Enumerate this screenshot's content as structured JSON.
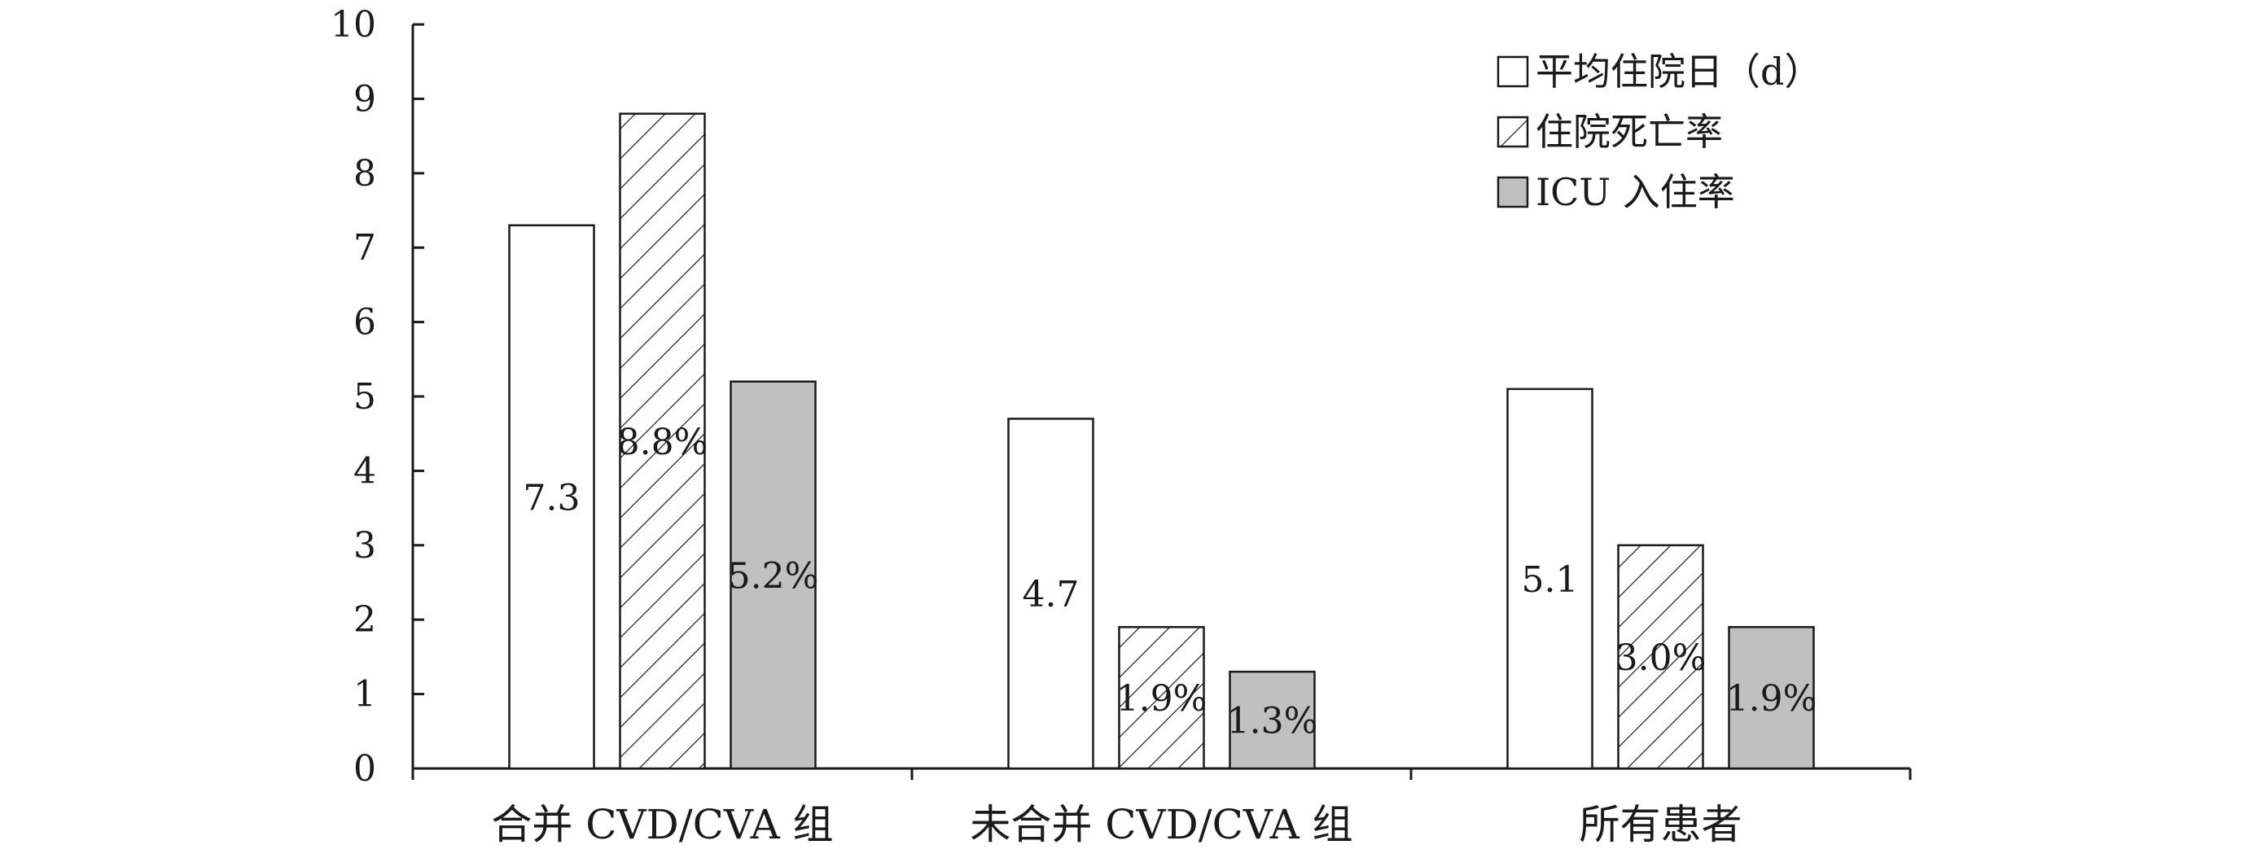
{
  "chart_data": {
    "type": "bar",
    "categories": [
      "合并 CVD/CVA 组",
      "未合并 CVD/CVA 组",
      "所有患者"
    ],
    "series": [
      {
        "name": "平均住院日（d）",
        "values": [
          7.3,
          4.7,
          5.1
        ],
        "labels": [
          "7.3",
          "4.7",
          "5.1"
        ],
        "fill": "white",
        "color": "#ffffff"
      },
      {
        "name": "住院死亡率",
        "values": [
          8.8,
          1.9,
          3.0
        ],
        "labels": [
          "8.8%",
          "1.9%",
          "3.0%"
        ],
        "fill": "hatch",
        "color": "#ffffff"
      },
      {
        "name": "ICU 入住率",
        "values": [
          5.2,
          1.3,
          1.9
        ],
        "labels": [
          "5.2%",
          "1.3%",
          "1.9%"
        ],
        "fill": "gray",
        "color": "#c0c0c0"
      }
    ],
    "title": "",
    "xlabel": "",
    "ylabel": "",
    "ylim": [
      0,
      10
    ],
    "yticks": [
      "0",
      "1",
      "2",
      "3",
      "4",
      "5",
      "6",
      "7",
      "8",
      "9",
      "10"
    ],
    "grid": false,
    "legend": "top-right"
  }
}
